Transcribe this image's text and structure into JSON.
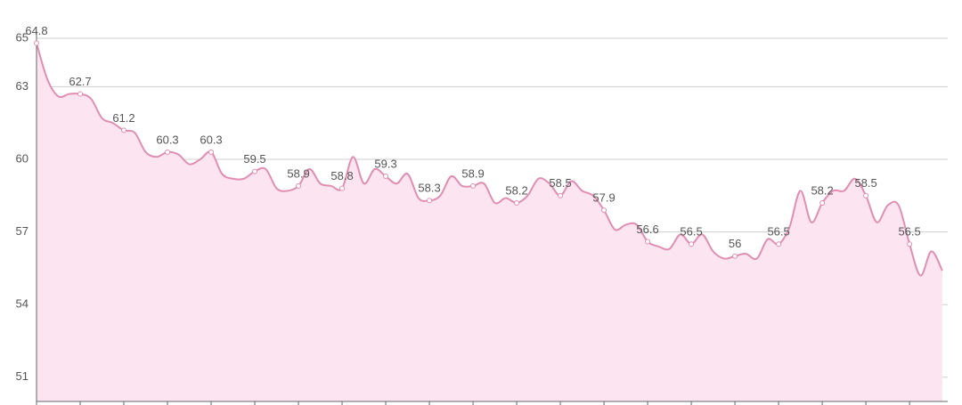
{
  "chart_data": {
    "type": "area",
    "x": [
      0,
      1,
      2,
      3,
      4,
      5,
      6,
      7,
      8,
      9,
      10,
      11,
      12,
      13,
      14,
      15,
      16,
      17,
      18,
      19,
      20,
      21,
      22,
      23,
      24,
      25,
      26,
      27,
      28,
      29,
      30,
      31,
      32,
      33,
      34,
      35,
      36,
      37,
      38,
      39,
      40,
      41,
      42,
      43,
      44,
      45,
      46,
      47,
      48,
      49,
      50,
      51,
      52,
      53,
      54,
      55,
      56,
      57,
      58,
      59,
      60,
      61,
      62,
      63,
      64,
      65,
      66,
      67,
      68,
      69,
      70,
      71,
      72,
      73,
      74,
      75,
      76,
      77,
      78,
      79,
      80,
      81,
      82,
      83
    ],
    "values": [
      64.8,
      63.3,
      62.6,
      62.7,
      62.7,
      62.5,
      61.7,
      61.5,
      61.2,
      61.1,
      60.3,
      60.1,
      60.3,
      60.2,
      59.8,
      60.0,
      60.3,
      59.4,
      59.2,
      59.2,
      59.5,
      59.6,
      58.8,
      58.7,
      58.9,
      59.6,
      59.0,
      58.9,
      58.8,
      60.1,
      59.0,
      59.6,
      59.3,
      59.0,
      59.4,
      58.4,
      58.3,
      58.5,
      59.3,
      58.9,
      58.9,
      59.0,
      58.2,
      58.4,
      58.2,
      58.5,
      59.2,
      59.0,
      58.5,
      59.1,
      58.7,
      58.5,
      57.9,
      57.1,
      57.3,
      57.3,
      56.6,
      56.4,
      56.3,
      56.9,
      56.5,
      56.9,
      56.2,
      55.9,
      56,
      56.1,
      55.9,
      56.7,
      56.5,
      57.2,
      58.7,
      57.4,
      58.2,
      58.7,
      58.7,
      59.2,
      58.5,
      57.4,
      58.1,
      58.1,
      56.5,
      55.2,
      56.2,
      55.4
    ],
    "color": "#e08eb2",
    "fill": "#fce4f1",
    "xlim": [
      0,
      83.5
    ],
    "xticks": [
      0,
      4,
      8,
      12,
      16,
      20,
      24,
      28,
      32,
      36,
      40,
      44,
      48,
      52,
      56,
      60,
      64,
      68,
      72,
      76,
      80
    ],
    "ylim": [
      50,
      65
    ],
    "yticks": [
      51,
      54,
      57,
      60,
      63,
      65
    ],
    "grid": true
  }
}
